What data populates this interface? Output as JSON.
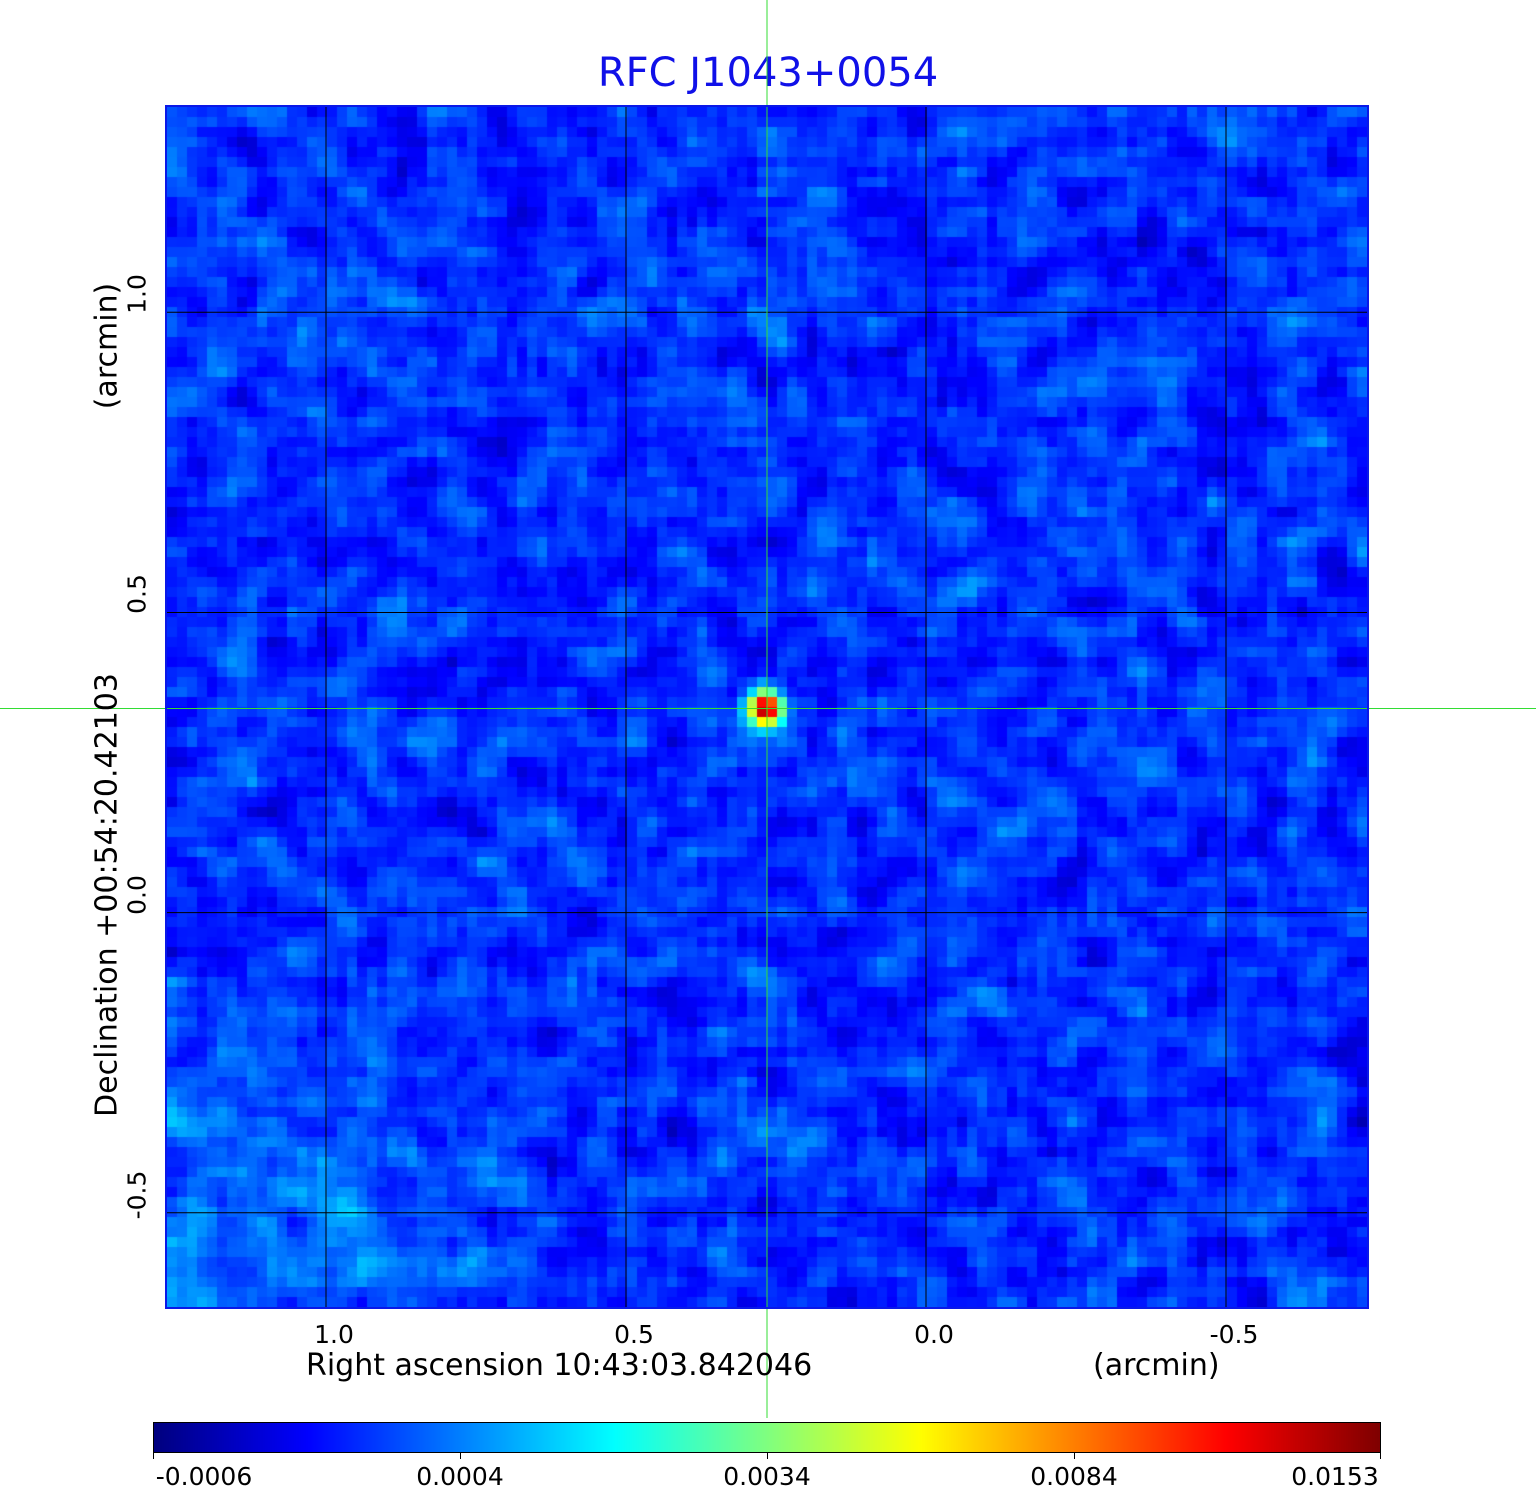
{
  "chart_data": {
    "type": "heatmap",
    "title": "RFC J1043+0054",
    "xlabel": "Right ascension  10:43:03.842046",
    "xunit": "(arcmin)",
    "ylabel": "Declination  +00:54:20.42103",
    "yunit": "(arcmin)",
    "xticks": [
      "1.0",
      "0.5",
      "0.0",
      "-0.5"
    ],
    "xtick_values": [
      1.0,
      0.5,
      0.0,
      -0.5
    ],
    "yticks": [
      "1.0",
      "0.5",
      "0.0",
      "-0.5"
    ],
    "ytick_values": [
      1.0,
      0.5,
      0.0,
      -0.5
    ],
    "xlim": [
      1.265,
      -0.735
    ],
    "ylim": [
      -0.657,
      1.342
    ],
    "grid": true,
    "colormap": "jet",
    "colorbar": {
      "ticks": [
        "-0.0006",
        "0.0004",
        "0.0034",
        "0.0084",
        "0.0153"
      ],
      "range": [
        -0.0006,
        0.0153
      ],
      "placement": "bottom"
    },
    "peak": {
      "x": 0.265,
      "y": 0.34,
      "value": 0.0153
    },
    "crosshair": {
      "x": 0.265,
      "y": 0.34
    },
    "colors": {
      "title": "#1010e8",
      "frame": "#0a18e8",
      "grid": "#000000",
      "crosshair": "#33dd33"
    }
  }
}
